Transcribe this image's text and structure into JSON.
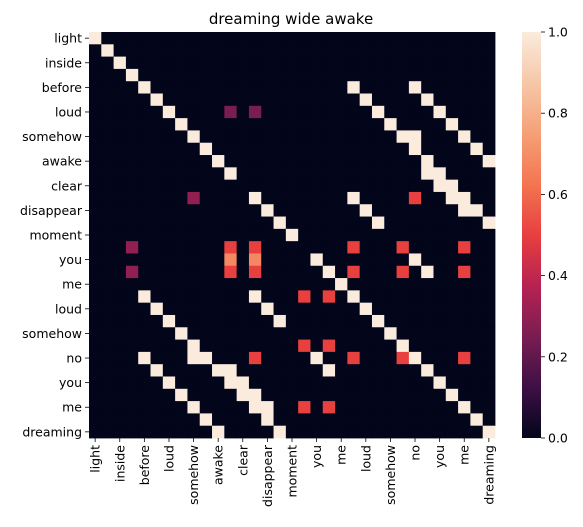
{
  "chart_data": {
    "type": "heatmap",
    "title": "dreaming wide awake",
    "xlabel": "",
    "ylabel": "",
    "x_tick_labels": [
      "light",
      "inside",
      "before",
      "loud",
      "somehow",
      "awake",
      "clear",
      "disappear",
      "moment",
      "you",
      "me",
      "loud",
      "somehow",
      "no",
      "you",
      "me",
      "dreaming"
    ],
    "y_tick_labels": [
      "light",
      "inside",
      "before",
      "loud",
      "somehow",
      "awake",
      "clear",
      "disappear",
      "moment",
      "you",
      "me",
      "loud",
      "somehow",
      "no",
      "you",
      "me",
      "dreaming"
    ],
    "n": 33,
    "colorbar": {
      "min": 0.0,
      "max": 1.0,
      "ticks": [
        "0.0",
        "0.2",
        "0.4",
        "0.6",
        "0.8",
        "1.0"
      ]
    },
    "colormap": [
      "#03051a",
      "#3d1045",
      "#7a1d51",
      "#b72253",
      "#e83f3f",
      "#f37551",
      "#f5a077",
      "#f6c7a8",
      "#faebdd"
    ],
    "default_value": 0,
    "cells": [
      [
        6,
        11,
        0.25
      ],
      [
        6,
        13,
        0.25
      ],
      [
        13,
        8,
        0.3
      ],
      [
        13,
        26,
        0.5
      ],
      [
        17,
        3,
        0.3
      ],
      [
        17,
        11,
        0.5
      ],
      [
        17,
        13,
        0.5
      ],
      [
        17,
        21,
        0.5
      ],
      [
        17,
        25,
        0.5
      ],
      [
        17,
        30,
        0.5
      ],
      [
        18,
        11,
        0.68
      ],
      [
        18,
        13,
        0.68
      ],
      [
        19,
        3,
        0.3
      ],
      [
        19,
        11,
        0.5
      ],
      [
        19,
        13,
        0.5
      ],
      [
        19,
        21,
        0.5
      ],
      [
        19,
        25,
        0.5
      ],
      [
        19,
        30,
        0.5
      ],
      [
        21,
        17,
        0.5
      ],
      [
        21,
        19,
        0.5
      ],
      [
        25,
        17,
        0.5
      ],
      [
        25,
        19,
        0.5
      ],
      [
        26,
        13,
        0.5
      ],
      [
        26,
        21,
        0.5
      ],
      [
        26,
        25,
        0.5
      ],
      [
        26,
        30,
        0.5
      ],
      [
        30,
        17,
        0.5
      ],
      [
        30,
        19,
        0.5
      ]
    ],
    "diagonal_runs": [
      [
        0,
        0,
        12,
        1
      ],
      [
        13,
        13,
        4,
        1
      ],
      [
        18,
        18,
        15,
        1
      ],
      [
        13,
        21,
        3,
        1
      ],
      [
        17,
        25,
        3,
        1
      ],
      [
        21,
        13,
        3,
        1
      ],
      [
        25,
        17,
        3,
        1
      ],
      [
        4,
        21,
        12,
        1
      ],
      [
        21,
        4,
        12,
        1
      ],
      [
        4,
        26,
        7,
        1
      ],
      [
        26,
        4,
        7,
        1
      ],
      [
        9,
        26,
        2,
        1
      ],
      [
        26,
        9,
        2,
        1
      ],
      [
        11,
        27,
        4,
        1
      ],
      [
        27,
        11,
        4,
        1
      ],
      [
        8,
        26,
        1,
        1
      ],
      [
        26,
        8,
        1,
        1
      ]
    ]
  }
}
